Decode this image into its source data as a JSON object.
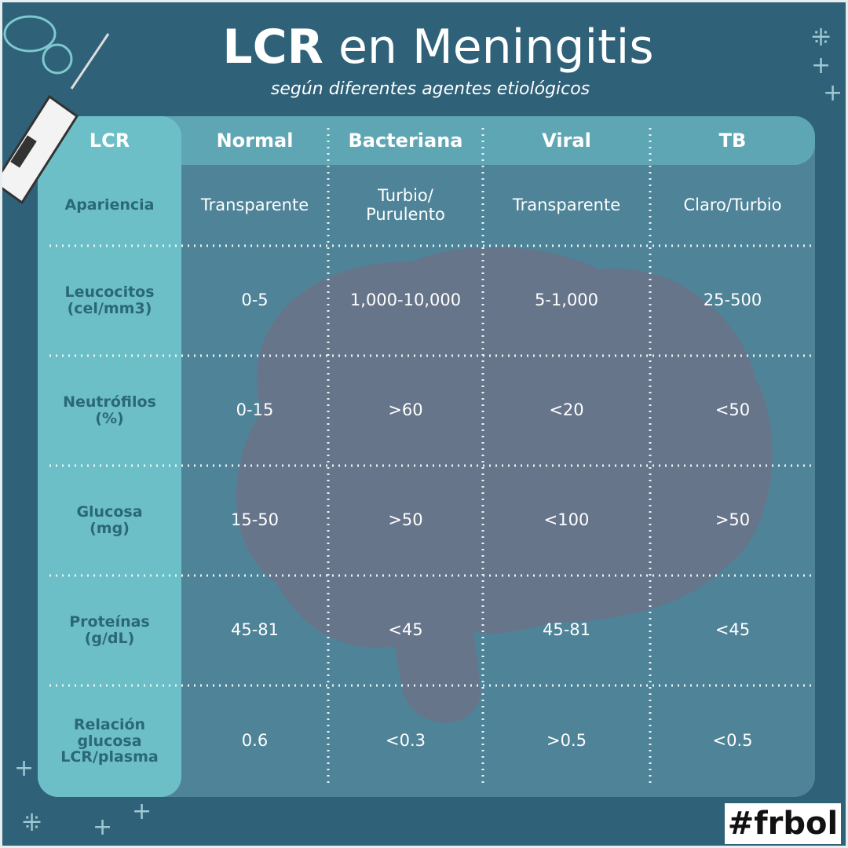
{
  "header": {
    "title_bold": "LCR",
    "title_rest": "en Meningitis",
    "subtitle": "según diferentes agentes etiológicos"
  },
  "table": {
    "columns": [
      "LCR",
      "Normal",
      "Bacteriana",
      "Viral",
      "TB"
    ],
    "rows": [
      [
        "Apariencia",
        "Transparente",
        "Turbio/\nPurulento",
        "Transparente",
        "Claro/Turbio"
      ],
      [
        "Leucocitos\n(cel/mm3)",
        "0-5",
        "1,000-10,000",
        "5-1,000",
        "25-500"
      ],
      [
        "Neutrófilos\n(%)",
        "0-15",
        ">60",
        "<20",
        "<50"
      ],
      [
        "Glucosa\n(mg)",
        "15-50",
        ">50",
        "<100",
        ">50"
      ],
      [
        "Proteínas\n(g/dL)",
        "45-81",
        "<45",
        "45-81",
        "<45"
      ],
      [
        "Relación\nglucosa\nLCR/plasma",
        "0.6",
        "<0.3",
        ">0.5",
        "<0.5"
      ]
    ]
  },
  "footer": {
    "tag": "#frbol"
  }
}
